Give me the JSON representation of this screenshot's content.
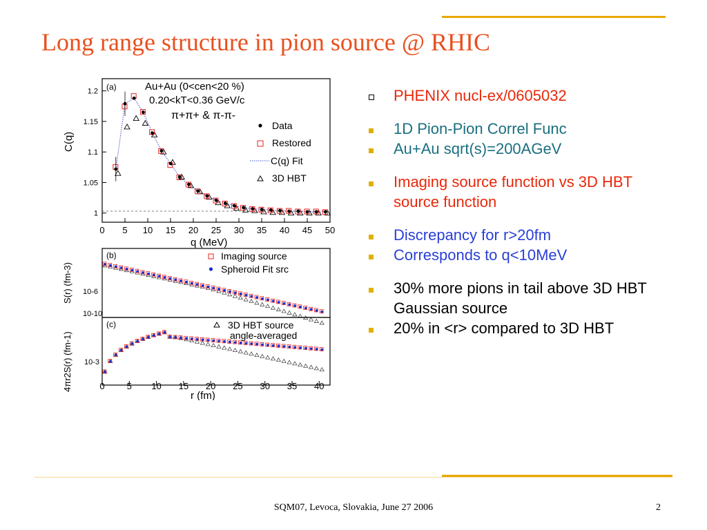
{
  "slide": {
    "title": "Long range structure in pion source @ RHIC",
    "footer": "SQM07, Levoca, Slovakia, June 27 2006",
    "page_number": "2"
  },
  "colors": {
    "title": "#e8501e",
    "accent_line": "#e8a800",
    "text_default": "#000000",
    "text_teal": "#1a6f80",
    "text_red": "#e8280a",
    "text_blue": "#2a3fd6",
    "bullet_marker": "#e0b000"
  },
  "bullets": [
    {
      "text": "PHENIX nucl-ex/0605032",
      "color": "#e8280a",
      "marker": "hollow-square",
      "gap_before": 0
    },
    {
      "text": "1D Pion-Pion Correl Func",
      "color": "#1a6f80",
      "marker": "square",
      "gap_before": 1
    },
    {
      "text": "Au+Au sqrt(s)=200AGeV",
      "color": "#1a6f80",
      "marker": "square",
      "gap_before": 0
    },
    {
      "text": "Imaging source function vs 3D HBT source function",
      "color": "#e8280a",
      "marker": "square",
      "gap_before": 1
    },
    {
      "text": "Discrepancy for r>20fm",
      "color": "#2a3fd6",
      "marker": "square",
      "gap_before": 1
    },
    {
      "text": "Corresponds to q<10MeV",
      "color": "#2a3fd6",
      "marker": "square",
      "gap_before": 0
    },
    {
      "text": "30% more pions in tail above 3D HBT Gaussian source",
      "color": "#000000",
      "marker": "square",
      "gap_before": 1
    },
    {
      "text": "20% in <r> compared to 3D HBT",
      "color": "#000000",
      "marker": "square",
      "gap_before": 0
    }
  ],
  "figure": {
    "panel_a": {
      "label": "(a)",
      "line1": "Au+Au (0<cen<20 %)",
      "line2": "0.20<kT<0.36 GeV/c",
      "line3": "π+π+ & π-π-",
      "ylabel": "C(q)",
      "xlabel": "q (MeV)",
      "xticks": [
        "0",
        "5",
        "10",
        "15",
        "20",
        "25",
        "30",
        "35",
        "40",
        "45",
        "50"
      ],
      "yticks": [
        "1",
        "1.05",
        "1.1",
        "1.15",
        "1.2"
      ],
      "legend": [
        "Data",
        "Restored",
        "C(q) Fit",
        "3D HBT"
      ],
      "xlim": [
        0,
        50
      ],
      "ylim": [
        0.985,
        1.22
      ],
      "q": [
        3,
        5,
        7,
        9,
        11,
        13,
        15,
        17,
        19,
        21,
        23,
        25,
        27,
        29,
        31,
        33,
        35,
        37,
        39,
        41,
        43,
        45,
        47,
        49
      ],
      "data": [
        1.072,
        1.179,
        1.188,
        1.165,
        1.131,
        1.102,
        1.081,
        1.059,
        1.047,
        1.036,
        1.028,
        1.021,
        1.016,
        1.012,
        1.009,
        1.007,
        1.006,
        1.005,
        1.004,
        1.003,
        1.003,
        1.002,
        1.002,
        1.002
      ],
      "restored": [
        1.075,
        1.174,
        1.191,
        1.165,
        1.132,
        1.101,
        1.078,
        1.058,
        1.046,
        1.035,
        1.027,
        1.02,
        1.015,
        1.011,
        1.008,
        1.006,
        1.005,
        1.004,
        1.003,
        1.003,
        1.002,
        1.002,
        1.002,
        1.001
      ],
      "hbt3d": [
        1.065,
        1.141,
        1.155,
        1.147,
        1.128,
        1.1,
        1.083,
        1.059,
        1.045,
        1.035,
        1.026,
        1.017,
        1.012,
        1.008,
        1.005,
        1.004,
        1.002,
        1.001,
        1.001,
        1.0,
        1.0,
        1.0,
        1.0,
        1.0
      ]
    },
    "panel_b": {
      "label": "(b)",
      "ylabel": "S(r) (fm-3)",
      "legend": [
        "Imaging source",
        "Spheroid Fit src"
      ],
      "ytick_top": "10-6",
      "ytick_bottom": "10-10"
    },
    "panel_c": {
      "label": "(c)",
      "ylabel": "4πr2S(r) (fm-1)",
      "legend_line1": "3D HBT source",
      "legend_line2": "angle-averaged",
      "ytick": "10-3",
      "xlabel": "r (fm)",
      "xticks": [
        "0",
        "5",
        "10",
        "15",
        "20",
        "25",
        "30",
        "35",
        "40"
      ],
      "xlim": [
        0,
        42
      ]
    }
  }
}
